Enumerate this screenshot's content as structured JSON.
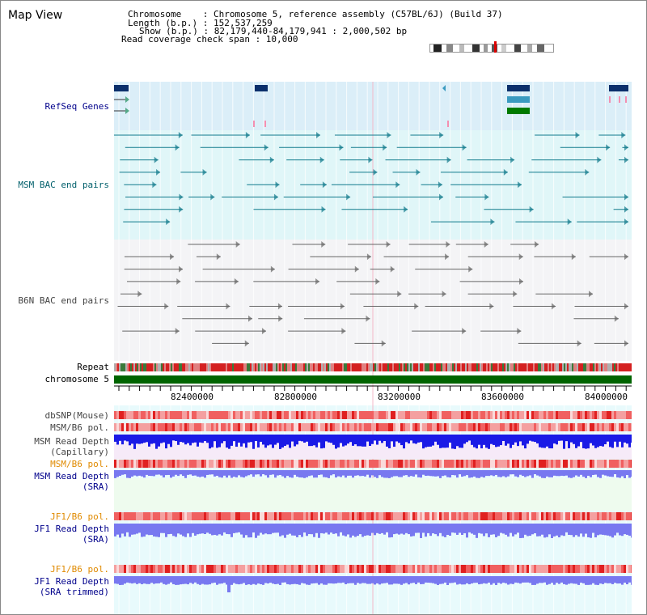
{
  "header": {
    "title": "Map View",
    "chromosome_line": "Chromosome    : Chromosome 5, reference assembly (C57BL/6J) (Build 37)",
    "length_line": "Length (b.p.) : 152,537,259",
    "show_line": "Show (b.p.) : 82,179,440-84,179,941 : 2,000,502 bp",
    "coverage_line": "Read coverage check span : 10,000"
  },
  "tracks": {
    "refseq": "RefSeq Genes",
    "msm_bac": "MSM BAC end pairs",
    "b6n_bac": "B6N BAC end pairs",
    "repeat": "Repeat",
    "chromosome": "chromosome 5",
    "dbsnp": "dbSNP(Mouse)",
    "msm_b6_pol_1": "MSM/B6 pol.",
    "msm_depth_cap_1": "MSM Read Depth",
    "msm_depth_cap_2": "(Capillary)",
    "msm_b6_pol_2": "MSM/B6 pol.",
    "msm_depth_sra_1": "MSM Read Depth",
    "msm_depth_sra_2": "(SRA)",
    "jf1_b6_pol_1": "JF1/B6 pol.",
    "jf1_depth_sra_1": "JF1 Read Depth",
    "jf1_depth_sra_2": "(SRA)",
    "jf1_b6_pol_2": "JF1/B6 pol.",
    "jf1_depth_trim_1": "JF1 Read Depth",
    "jf1_depth_trim_2": "(SRA trimmed)"
  },
  "axis": {
    "ticks": [
      "82400000",
      "82800000",
      "83200000",
      "83600000",
      "84000000"
    ]
  },
  "colors": {
    "refseq_bg": "#dbeef8",
    "msm_bg": "#e0f6f8",
    "b6n_bg": "#f4f4f6",
    "chromosome": "#006400",
    "repeat_red": "#d42020",
    "depth_blue": "#1a1ae6",
    "depth_light": "#7878f0",
    "gene_navy": "#0b2f6b",
    "gene_teal": "#3a9ac0",
    "gene_green": "#007a00"
  }
}
